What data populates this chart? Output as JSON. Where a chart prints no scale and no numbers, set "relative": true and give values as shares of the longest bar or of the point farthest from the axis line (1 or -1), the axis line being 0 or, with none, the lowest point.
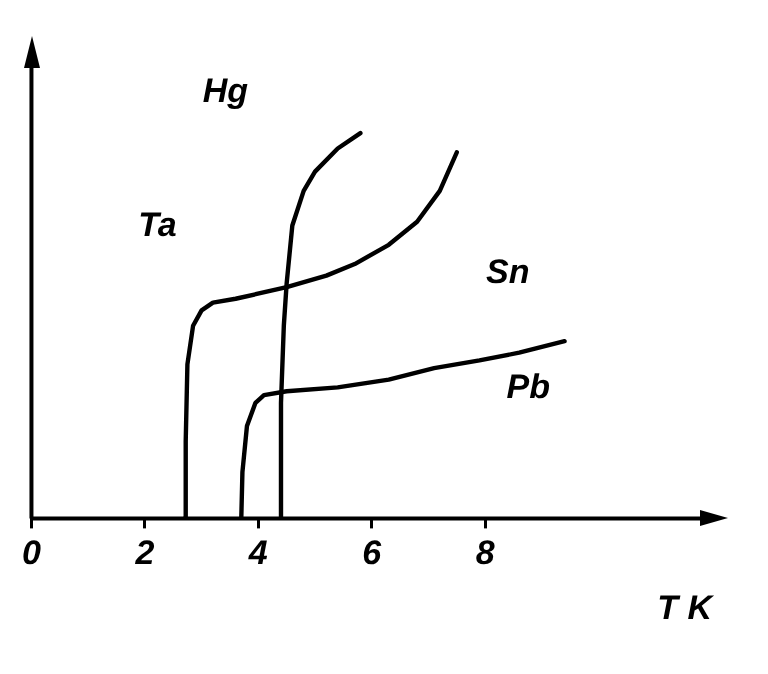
{
  "chart_data": {
    "type": "line",
    "relative": true,
    "xlabel": "T K",
    "xlim": [
      0,
      12
    ],
    "xticks": [
      0,
      2,
      4,
      6,
      8
    ],
    "grid": false,
    "legend": false,
    "marker": "none",
    "line_style": "solid",
    "series": [
      {
        "color": "#000000",
        "x": [
          2.7,
          2.72,
          2.75,
          2.85,
          3.0,
          3.2,
          3.6,
          4.5,
          5.2,
          5.7,
          6.3,
          6.8,
          7.2,
          7.5
        ],
        "values": [
          0,
          0.2,
          0.4,
          0.5,
          0.54,
          0.56,
          0.57,
          0.6,
          0.63,
          0.66,
          0.71,
          0.77,
          0.85,
          0.95
        ]
      },
      {
        "color": "#000000",
        "x": [
          4.4,
          4.4,
          4.45,
          4.5,
          4.6,
          4.8,
          5.0,
          5.4,
          5.8
        ],
        "values": [
          0,
          0.3,
          0.5,
          0.61,
          0.76,
          0.85,
          0.9,
          0.96,
          1
        ]
      },
      {
        "color": "#000000",
        "x": [
          3.7,
          3.72,
          3.8,
          3.95,
          4.1,
          4.5,
          5.4,
          6.3,
          7.1,
          7.9,
          8.6,
          9.4
        ],
        "values": [
          0,
          0.12,
          0.24,
          0.3,
          0.32,
          0.33,
          0.34,
          0.36,
          0.39,
          0.41,
          0.43,
          0.46
        ]
      }
    ],
    "annotations": [
      "Ta",
      "Hg",
      "Sn",
      "Pb"
    ]
  }
}
